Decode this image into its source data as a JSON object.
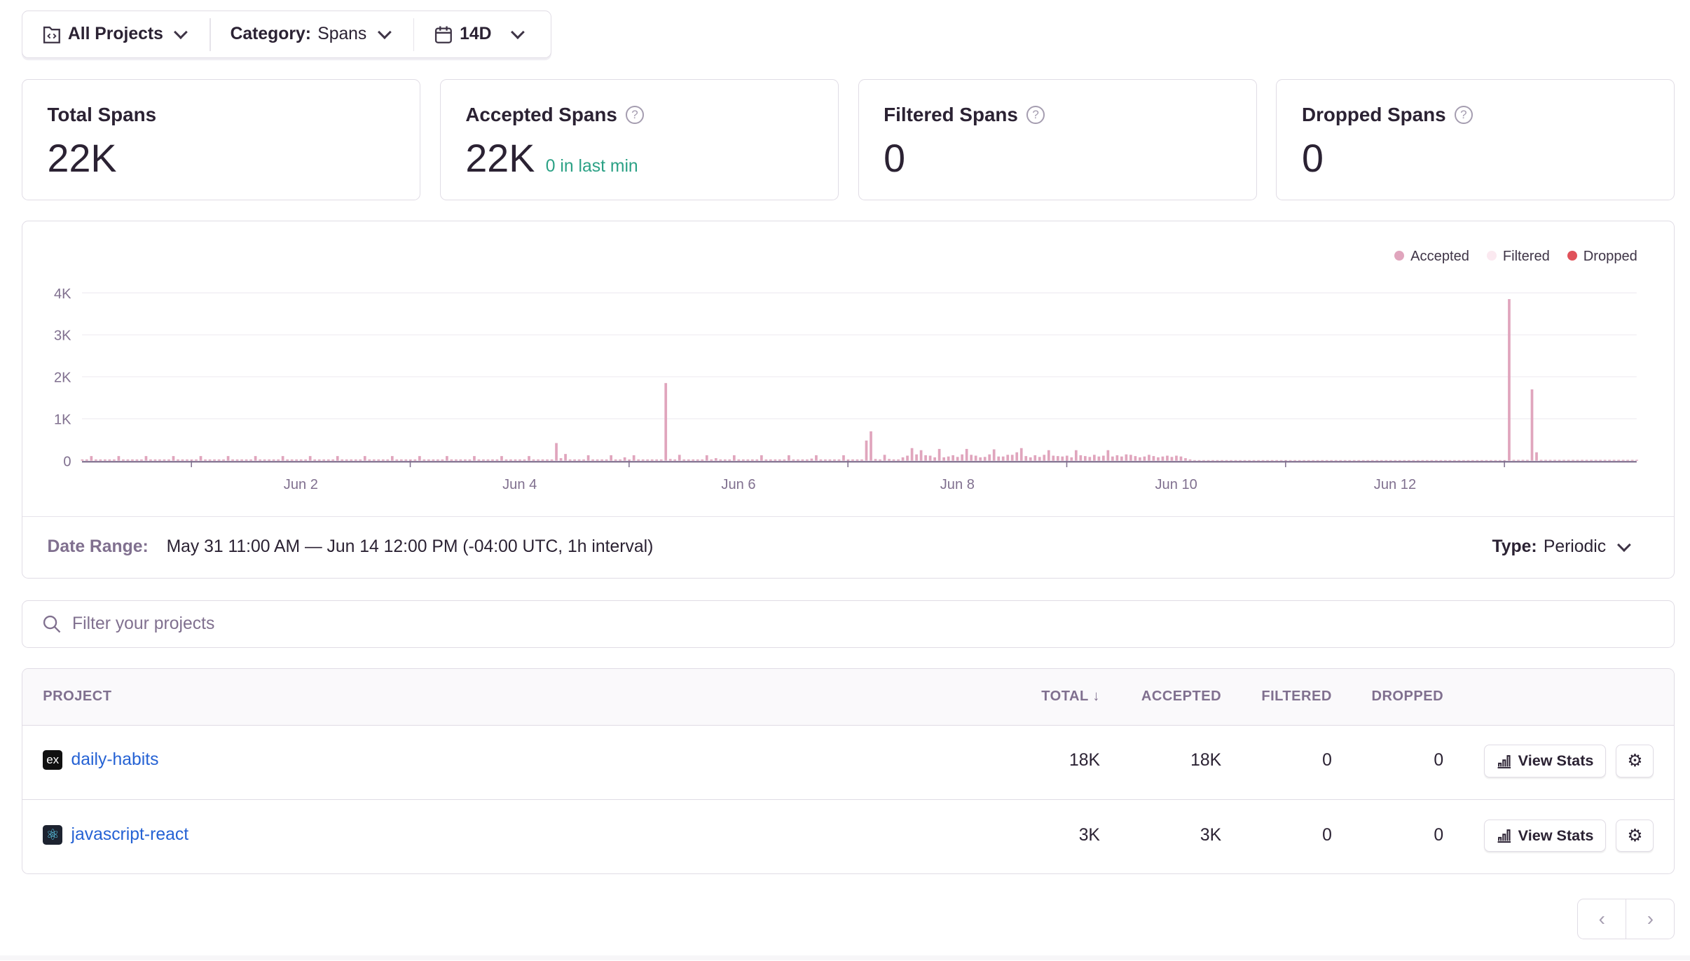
{
  "toolbar": {
    "projects": {
      "label": "All Projects",
      "icon": "project-folder-icon"
    },
    "category": {
      "label": "Category:",
      "value": "Spans"
    },
    "date": {
      "label": "14D",
      "icon": "calendar-icon"
    }
  },
  "cards": [
    {
      "title": "Total Spans",
      "value": "22K",
      "help": false
    },
    {
      "title": "Accepted Spans",
      "value": "22K",
      "sub": "0 in last min",
      "help": true
    },
    {
      "title": "Filtered Spans",
      "value": "0",
      "help": true
    },
    {
      "title": "Dropped Spans",
      "value": "0",
      "help": true
    }
  ],
  "colors": {
    "accepted": "#e0a5bd",
    "filtered": "#fbe9f0",
    "dropped": "#e0525a",
    "positive": "#2ba185",
    "link": "#2562d4"
  },
  "chart_data": {
    "type": "bar",
    "x_start": "May 31 11:00 AM",
    "interval": "1h",
    "x_ticks": [
      "Jun 2",
      "Jun 4",
      "Jun 6",
      "Jun 8",
      "Jun 10",
      "Jun 12"
    ],
    "y_ticks": [
      "0",
      "1K",
      "2K",
      "3K",
      "4K"
    ],
    "ylim": [
      0,
      4000
    ],
    "legend": [
      {
        "name": "Accepted",
        "color": "#e0a5bd"
      },
      {
        "name": "Filtered",
        "color": "#fbe9f0"
      },
      {
        "name": "Dropped",
        "color": "#e0525a"
      }
    ],
    "legend_position": "top-right",
    "grid": true,
    "series": [
      {
        "name": "Accepted",
        "values": [
          30,
          30,
          110,
          30,
          30,
          30,
          30,
          30,
          110,
          30,
          30,
          30,
          30,
          30,
          110,
          30,
          30,
          30,
          30,
          30,
          110,
          30,
          30,
          30,
          30,
          30,
          110,
          30,
          30,
          30,
          30,
          30,
          110,
          30,
          30,
          30,
          30,
          30,
          110,
          30,
          30,
          30,
          30,
          30,
          110,
          30,
          30,
          30,
          30,
          30,
          110,
          30,
          30,
          30,
          30,
          30,
          110,
          30,
          30,
          30,
          30,
          30,
          110,
          30,
          30,
          30,
          30,
          30,
          110,
          30,
          30,
          30,
          30,
          30,
          110,
          30,
          30,
          30,
          30,
          30,
          110,
          30,
          30,
          30,
          30,
          30,
          110,
          30,
          30,
          30,
          30,
          30,
          110,
          30,
          30,
          30,
          30,
          30,
          110,
          30,
          30,
          30,
          30,
          30,
          420,
          60,
          160,
          30,
          30,
          30,
          30,
          130,
          30,
          30,
          30,
          30,
          130,
          30,
          30,
          80,
          30,
          130,
          30,
          30,
          30,
          30,
          30,
          30,
          1850,
          40,
          30,
          140,
          30,
          30,
          30,
          30,
          30,
          130,
          30,
          60,
          30,
          30,
          30,
          130,
          30,
          30,
          30,
          30,
          30,
          130,
          30,
          30,
          30,
          30,
          30,
          130,
          30,
          30,
          30,
          30,
          50,
          130,
          30,
          30,
          30,
          30,
          30,
          130,
          30,
          30,
          30,
          30,
          480,
          700,
          40,
          30,
          140,
          40,
          30,
          30,
          80,
          120,
          300,
          150,
          250,
          130,
          120,
          80,
          280,
          80,
          100,
          130,
          90,
          150,
          280,
          140,
          120,
          80,
          90,
          150,
          270,
          100,
          100,
          140,
          140,
          200,
          300,
          110,
          80,
          130,
          90,
          140,
          250,
          120,
          110,
          100,
          120,
          80,
          250,
          130,
          110,
          90,
          140,
          100,
          120,
          250,
          100,
          130,
          100,
          150,
          140,
          110,
          80,
          100,
          140,
          110,
          80,
          100,
          120,
          90,
          120,
          100,
          60,
          30,
          15,
          15,
          15,
          15,
          15,
          15,
          15,
          15,
          15,
          15,
          15,
          15,
          15,
          15,
          15,
          15,
          15,
          15,
          15,
          15,
          15,
          15,
          15,
          15,
          15,
          15,
          15,
          15,
          15,
          15,
          15,
          15,
          15,
          15,
          15,
          15,
          15,
          15,
          15,
          15,
          15,
          15,
          15,
          15,
          15,
          15,
          15,
          15,
          15,
          15,
          15,
          15,
          15,
          15,
          15,
          15,
          15,
          15,
          15,
          15,
          15,
          15,
          15,
          15,
          15,
          15,
          15,
          15,
          15,
          3850,
          20,
          20,
          20,
          20,
          1700,
          200,
          20,
          20,
          20,
          20,
          20,
          20,
          20,
          20,
          20,
          20,
          20,
          20,
          20,
          20,
          20,
          20,
          20,
          20,
          20,
          20,
          20,
          20
        ]
      },
      {
        "name": "Filtered",
        "values": []
      },
      {
        "name": "Dropped",
        "values": []
      }
    ]
  },
  "date_range": {
    "label": "Date Range:",
    "value": "May 31 11:00 AM — Jun 14 12:00 PM (-04:00 UTC, 1h interval)"
  },
  "type_select": {
    "label": "Type:",
    "value": "Periodic"
  },
  "search": {
    "placeholder": "Filter your projects"
  },
  "table": {
    "headers": {
      "project": "PROJECT",
      "total": "TOTAL",
      "accepted": "ACCEPTED",
      "filtered": "FILTERED",
      "dropped": "DROPPED"
    },
    "sort": {
      "column": "total",
      "direction": "desc"
    },
    "rows": [
      {
        "name": "daily-habits",
        "platform_icon": "ex",
        "total": "18K",
        "accepted": "18K",
        "filtered": "0",
        "dropped": "0",
        "action": "View Stats"
      },
      {
        "name": "javascript-react",
        "platform_icon": "react-icon",
        "total": "3K",
        "accepted": "3K",
        "filtered": "0",
        "dropped": "0",
        "action": "View Stats"
      }
    ]
  },
  "pager": {
    "prev": "‹",
    "next": "›"
  }
}
